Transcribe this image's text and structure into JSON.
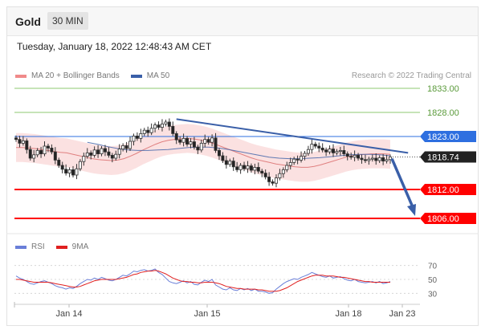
{
  "header": {
    "title": "Gold",
    "timeframe": "30 MIN"
  },
  "timestamp": "Tuesday, January 18, 2022 12:48:43 AM CET",
  "legend": {
    "ma20_bb": "MA 20 + Bollinger Bands",
    "ma50": "MA 50",
    "credit": "Research © 2022 Trading Central"
  },
  "rsi_legend": {
    "rsi": "RSI",
    "ma9": "9MA"
  },
  "colors": {
    "bollinger": "#f7c9c9",
    "ma20": "#e08080",
    "ma50": "#3a5fa8",
    "support": "#ff0000",
    "resistance": "#8cc870",
    "trendline": "#3a5fa8",
    "current": "#222222",
    "pivot": "#2e6fe0",
    "rsi": "#6a7fd8",
    "rsi_ma": "#e02020"
  },
  "chart_data": [
    {
      "type": "candlestick",
      "x_ticks": [
        "Jan 14",
        "Jan 15",
        "Jan 18",
        "Jan 23"
      ],
      "ylim": [
        1804,
        1835
      ],
      "current_price": "1818.74",
      "levels": [
        {
          "value": 1833.0,
          "label": "1833.00",
          "kind": "resistance"
        },
        {
          "value": 1828.0,
          "label": "1828.00",
          "kind": "resistance"
        },
        {
          "value": 1823.0,
          "label": "1823.00",
          "kind": "pivot"
        },
        {
          "value": 1812.0,
          "label": "1812.00",
          "kind": "support"
        },
        {
          "value": 1806.0,
          "label": "1806.00",
          "kind": "support"
        }
      ],
      "close": [
        1822.4,
        1821.6,
        1822.1,
        1820.3,
        1818.5,
        1819.2,
        1820.1,
        1819.4,
        1821.0,
        1820.6,
        1819.8,
        1818.1,
        1817.0,
        1816.2,
        1815.4,
        1816.1,
        1815.0,
        1816.3,
        1817.8,
        1818.9,
        1819.6,
        1819.1,
        1820.2,
        1819.4,
        1820.5,
        1819.8,
        1819.1,
        1818.5,
        1819.3,
        1820.4,
        1821.1,
        1820.5,
        1822.0,
        1823.1,
        1822.6,
        1823.6,
        1824.3,
        1823.8,
        1824.7,
        1825.4,
        1824.9,
        1825.6,
        1826.0,
        1825.1,
        1823.6,
        1822.3,
        1821.8,
        1822.6,
        1821.4,
        1821.9,
        1820.8,
        1820.2,
        1821.6,
        1822.4,
        1821.8,
        1822.7,
        1820.1,
        1819.0,
        1818.0,
        1817.2,
        1817.9,
        1816.7,
        1816.1,
        1817.0,
        1816.3,
        1816.9,
        1816.0,
        1816.6,
        1815.8,
        1815.4,
        1814.6,
        1813.6,
        1813.3,
        1814.4,
        1815.3,
        1816.1,
        1817.0,
        1817.6,
        1818.3,
        1818.1,
        1818.9,
        1819.5,
        1820.3,
        1821.4,
        1821.0,
        1820.6,
        1820.2,
        1819.8,
        1820.4,
        1819.6,
        1819.9,
        1820.1,
        1819.4,
        1818.9,
        1818.7,
        1819.1,
        1818.5,
        1818.2,
        1818.0,
        1818.3,
        1818.5,
        1818.0,
        1818.6,
        1817.9,
        1818.2,
        1818.74
      ],
      "ma20": [
        1820.7,
        1820.7,
        1820.6,
        1820.5,
        1820.3,
        1820.1,
        1819.9,
        1819.7,
        1819.6,
        1819.3,
        1819.0,
        1818.7,
        1818.4,
        1818.2,
        1818.1,
        1818.0,
        1818.1,
        1818.4,
        1818.9,
        1819.5,
        1820.2,
        1820.8,
        1821.4,
        1821.9,
        1822.2,
        1822.4,
        1822.5,
        1822.6,
        1822.5,
        1822.3,
        1822.0,
        1821.6,
        1821.1,
        1820.6,
        1820.1,
        1819.6,
        1819.1,
        1818.6,
        1818.2,
        1817.9,
        1817.6,
        1817.3,
        1817.1,
        1816.9,
        1816.7,
        1816.6,
        1816.6,
        1816.8,
        1817.1,
        1817.5,
        1817.9,
        1818.3,
        1818.7,
        1819.0,
        1819.2,
        1819.3,
        1819.4,
        1819.4,
        1819.4,
        1819.3
      ],
      "ma50": [
        1821.8,
        1821.4,
        1820.9,
        1820.5,
        1820.2,
        1820.1,
        1820.1,
        1820.2,
        1820.3,
        1820.5,
        1820.7,
        1820.8,
        1820.8,
        1820.6,
        1820.3,
        1819.9,
        1819.5,
        1819.1,
        1818.7,
        1818.5,
        1818.4,
        1818.4,
        1818.5,
        1818.6,
        1818.8,
        1819.0,
        1819.2,
        1819.3,
        1819.3,
        1819.2,
        1819.0
      ],
      "ma50_start": 20,
      "bb_width": 3.0,
      "trendline": {
        "from": [
          45,
          1826.6
        ],
        "to": [
          110,
          1819.6
        ]
      },
      "projection_target": 1806.0
    },
    {
      "type": "line",
      "name": "RSI",
      "ylim": [
        20,
        80
      ],
      "y_ticks": [
        "70",
        "50",
        "30"
      ],
      "rsi": [
        55,
        52,
        50,
        47,
        44,
        43,
        45,
        47,
        48,
        46,
        44,
        41,
        39,
        38,
        36,
        38,
        37,
        40,
        44,
        47,
        50,
        49,
        52,
        50,
        53,
        51,
        49,
        48,
        50,
        53,
        56,
        55,
        58,
        62,
        61,
        63,
        64,
        62,
        63,
        65,
        60,
        57,
        52,
        47,
        45,
        44,
        46,
        48,
        45,
        47,
        43,
        42,
        46,
        49,
        47,
        50,
        42,
        39,
        36,
        35,
        38,
        35,
        34,
        37,
        35,
        37,
        34,
        36,
        33,
        33,
        32,
        30,
        31,
        36,
        40,
        44,
        47,
        49,
        51,
        50,
        53,
        55,
        57,
        60,
        58,
        56,
        54,
        53,
        55,
        52,
        53,
        54,
        51,
        49,
        48,
        50,
        47,
        46,
        45,
        46,
        47,
        45,
        47,
        44,
        45,
        47
      ],
      "rsi_ma": [
        50,
        50,
        49,
        48,
        47,
        46,
        46,
        46,
        46,
        46,
        45,
        44,
        43,
        42,
        41,
        40,
        39,
        39,
        40,
        42,
        44,
        46,
        48,
        49,
        50,
        50,
        50,
        50,
        50,
        51,
        52,
        53,
        55,
        57,
        58,
        60,
        61,
        62,
        62,
        63,
        62,
        60,
        58,
        55,
        52,
        50,
        48,
        47,
        47,
        46,
        46,
        45,
        45,
        46,
        46,
        46,
        45,
        44,
        42,
        40,
        39,
        38,
        37,
        37,
        36,
        36,
        36,
        36,
        35,
        35,
        34,
        33,
        33,
        33,
        34,
        36,
        38,
        41,
        44,
        47,
        49,
        51,
        53,
        55,
        56,
        56,
        56,
        55,
        55,
        55,
        54,
        53,
        53,
        52,
        51,
        50,
        49,
        48,
        47,
        47,
        46,
        46,
        46,
        46,
        46,
        46
      ]
    }
  ]
}
